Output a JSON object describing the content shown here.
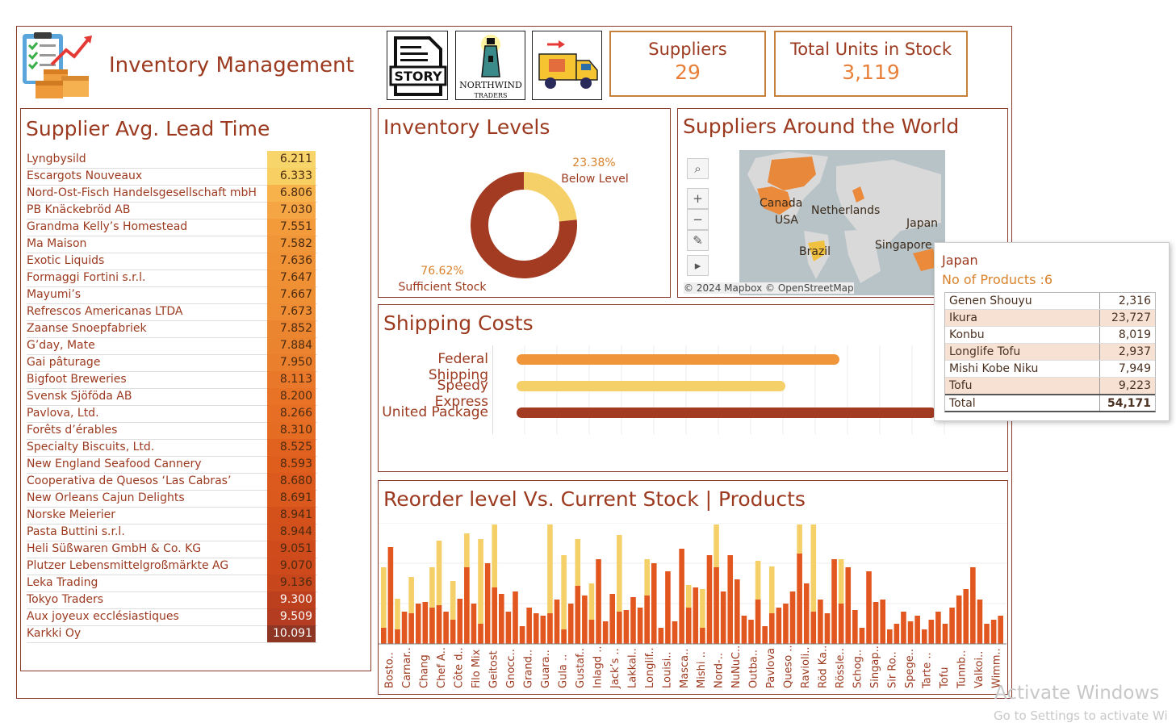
{
  "header": {
    "title": "Inventory Management",
    "story_label": "STORY",
    "northwind_label": "NORTHWIND",
    "traders_label": "TRADERS"
  },
  "kpis": {
    "suppliers_label": "Suppliers",
    "suppliers_value": "29",
    "units_label": "Total Units in Stock",
    "units_value": "3,119"
  },
  "lead_time": {
    "title": "Supplier Avg. Lead Time",
    "rows": [
      {
        "name": "Lyngbysild",
        "value": "6.211"
      },
      {
        "name": "Escargots Nouveaux",
        "value": "6.333"
      },
      {
        "name": "Nord-Ost-Fisch Handelsgesellschaft mbH",
        "value": "6.806"
      },
      {
        "name": "PB Knäckebröd AB",
        "value": "7.030"
      },
      {
        "name": "Grandma Kelly’s Homestead",
        "value": "7.551"
      },
      {
        "name": "Ma Maison",
        "value": "7.582"
      },
      {
        "name": "Exotic Liquids",
        "value": "7.636"
      },
      {
        "name": "Formaggi Fortini s.r.l.",
        "value": "7.647"
      },
      {
        "name": "Mayumi’s",
        "value": "7.667"
      },
      {
        "name": "Refrescos Americanas LTDA",
        "value": "7.673"
      },
      {
        "name": "Zaanse Snoepfabriek",
        "value": "7.852"
      },
      {
        "name": "G’day, Mate",
        "value": "7.884"
      },
      {
        "name": "Gai pâturage",
        "value": "7.950"
      },
      {
        "name": "Bigfoot Breweries",
        "value": "8.113"
      },
      {
        "name": "Svensk Sjöföda AB",
        "value": "8.200"
      },
      {
        "name": "Pavlova, Ltd.",
        "value": "8.266"
      },
      {
        "name": "Forêts d’érables",
        "value": "8.310"
      },
      {
        "name": "Specialty Biscuits, Ltd.",
        "value": "8.525"
      },
      {
        "name": "New England Seafood Cannery",
        "value": "8.593"
      },
      {
        "name": "Cooperativa de Quesos ‘Las Cabras’",
        "value": "8.680"
      },
      {
        "name": "New Orleans Cajun Delights",
        "value": "8.691"
      },
      {
        "name": "Norske Meierier",
        "value": "8.941"
      },
      {
        "name": "Pasta Buttini s.r.l.",
        "value": "8.944"
      },
      {
        "name": "Heli Süßwaren GmbH & Co. KG",
        "value": "9.051"
      },
      {
        "name": "Plutzer Lebensmittelgroßmärkte AG",
        "value": "9.070"
      },
      {
        "name": "Leka Trading",
        "value": "9.136"
      },
      {
        "name": "Tokyo Traders",
        "value": "9.300"
      },
      {
        "name": "Aux joyeux ecclésiastiques",
        "value": "9.509"
      },
      {
        "name": "Karkki Oy",
        "value": "10.091"
      }
    ]
  },
  "inventory_levels": {
    "title": "Inventory Levels",
    "below_pct": "23.38%",
    "below_label": "Below Level",
    "sufficient_pct": "76.62%",
    "sufficient_label": "Sufficient Stock",
    "below_fraction": 0.2338
  },
  "map": {
    "title": "Suppliers Around the World",
    "labels": [
      "Canada",
      "USA",
      "Netherlands",
      "Japan",
      "Singapore",
      "Brazil"
    ],
    "attribution": "© 2024 Mapbox © OpenStreetMap"
  },
  "tooltip": {
    "country": "Japan",
    "products_label": "No of Products :6",
    "rows": [
      {
        "name": "Genen Shouyu",
        "value": "2,316"
      },
      {
        "name": "Ikura",
        "value": "23,727"
      },
      {
        "name": "Konbu",
        "value": "8,019"
      },
      {
        "name": "Longlife Tofu",
        "value": "2,937"
      },
      {
        "name": "Mishi Kobe Niku",
        "value": "7,949"
      },
      {
        "name": "Tofu",
        "value": "9,223"
      }
    ],
    "total_label": "Total",
    "total_value": "54,171"
  },
  "shipping": {
    "title": "Shipping Costs",
    "rows": [
      {
        "name": "Federal Shipping",
        "value": 0.77,
        "color": "#f0953a"
      },
      {
        "name": "Speedy Express",
        "value": 0.64,
        "color": "#f5cf68"
      },
      {
        "name": "United Package",
        "value": 1.0,
        "color": "#a33a22"
      }
    ]
  },
  "reorder": {
    "title": "Reorder level Vs. Current Stock | Products",
    "labels": [
      "Bosto..",
      "Carnar..",
      "Chang",
      "Chef A..",
      "Côte d..",
      "Filo Mix",
      "Geitost",
      "Gnocc..",
      "Grand..",
      "Guara..",
      "Gula ..",
      "Gustaf..",
      "Inlagd ..",
      "Jack’s ..",
      "Lakkal..",
      "Longlif..",
      "Louisi..",
      "Masca..",
      "Mishi ..",
      "Nord-..",
      "NuNuC..",
      "Outba..",
      "Pavlova",
      "Queso ..",
      "Ravioli..",
      "Röd Ka..",
      "Rössle..",
      "Schog..",
      "Singap..",
      "Sir Ro..",
      "Spege..",
      "Tarte ..",
      "Tofu",
      "Tunnb..",
      "Valkoi..",
      "Wimm.."
    ]
  },
  "chart_data": {
    "type": "bar",
    "title": "Reorder level Vs. Current Stock | Products",
    "xlabel": "",
    "ylabel": "",
    "series": [
      {
        "values": [
          20,
          120,
          18,
          40,
          38,
          50,
          52,
          45,
          48,
          40,
          30,
          56,
          95,
          50,
          25,
          100,
          70,
          62,
          40,
          65,
          22,
          45,
          38,
          35,
          38,
          55,
          18,
          50,
          72,
          60,
          30,
          105,
          28,
          62,
          40,
          42,
          58,
          45,
          60,
          100,
          20,
          90,
          28,
          118,
          45,
          70,
          20,
          110,
          95,
          65,
          110,
          80,
          35,
          30,
          55,
          22,
          38,
          45,
          50,
          65,
          112,
          75,
          40,
          55,
          38,
          105,
          50,
          95,
          42,
          20,
          90,
          52,
          55,
          18,
          25,
          40,
          28,
          35,
          18,
          30,
          40,
          25,
          45,
          60,
          68,
          95,
          55,
          25,
          30,
          35
        ]
      },
      {
        "values": [
          75,
          0,
          38,
          0,
          45,
          0,
          0,
          50,
          80,
          0,
          48,
          0,
          42,
          0,
          105,
          0,
          90,
          0,
          0,
          0,
          0,
          0,
          0,
          0,
          115,
          0,
          92,
          0,
          58,
          0,
          45,
          0,
          0,
          0,
          95,
          0,
          0,
          0,
          45,
          0,
          0,
          0,
          0,
          0,
          28,
          0,
          48,
          0,
          72,
          0,
          0,
          0,
          0,
          0,
          48,
          0,
          58,
          0,
          0,
          0,
          90,
          0,
          115,
          0,
          0,
          0,
          55,
          0,
          0,
          0,
          0,
          0,
          0,
          0,
          0,
          0,
          0,
          0,
          0,
          0,
          0,
          0,
          0,
          0,
          0,
          0,
          0,
          0,
          0,
          0
        ]
      }
    ]
  },
  "colors": {
    "accent": "#9c3a20",
    "orange": "#f0953a",
    "yellow": "#f5cf68",
    "rust": "#a33a22",
    "bar_current": "#e2571f"
  },
  "watermark": {
    "line1": "Activate Windows",
    "line2": "Go to Settings to activate Wi"
  }
}
